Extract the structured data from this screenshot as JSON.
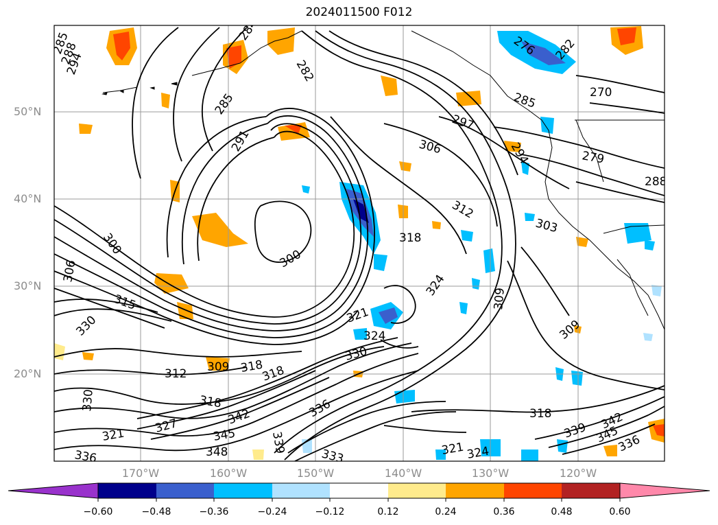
{
  "title": "2024011500 F012",
  "lat_labels": [
    "50°N",
    "40°N",
    "30°N",
    "20°N"
  ],
  "lon_labels": [
    "170°W",
    "160°W",
    "150°W",
    "140°W",
    "130°W",
    "120°W"
  ],
  "contour_labels": [
    "285",
    "288",
    "294",
    "285",
    "282",
    "284",
    "276",
    "282",
    "270",
    "285",
    "291",
    "297",
    "306",
    "279",
    "288",
    "294",
    "300",
    "300",
    "312",
    "318",
    "303",
    "306",
    "324",
    "309",
    "321",
    "324",
    "309",
    "330",
    "315",
    "312",
    "309",
    "318",
    "318",
    "330",
    "330",
    "318",
    "327",
    "321",
    "342",
    "336",
    "345",
    "339",
    "348",
    "333",
    "336",
    "321",
    "324",
    "342",
    "345",
    "336",
    "339"
  ],
  "colorbar": {
    "ticks": [
      "−0.60",
      "−0.48",
      "−0.36",
      "−0.24",
      "−0.12",
      "0.12",
      "0.24",
      "0.36",
      "0.48",
      "0.60"
    ],
    "colors": [
      "#9932cc",
      "#00008b",
      "#3a5fcd",
      "#00bfff",
      "#b0e2ff",
      "#ffffff",
      "#ffeb8c",
      "#ffa500",
      "#ff4500",
      "#b22222",
      "#ff88aa"
    ]
  },
  "colors": {
    "grid": "#9a9a9a",
    "contour": "#000000",
    "axis_label": "#8c8c8c"
  }
}
